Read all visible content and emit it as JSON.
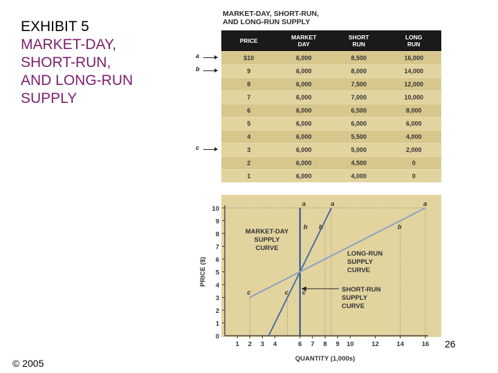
{
  "exhibit": {
    "title": "EXHIBIT 5",
    "subtitle_lines": [
      "MARKET-DAY,",
      "SHORT-RUN,",
      "AND LONG-RUN",
      "SUPPLY"
    ]
  },
  "copyright": "© 2005",
  "page_number": "26",
  "colors": {
    "accent": "#7a1e6e",
    "table_bg": "#d8c78c",
    "header_bg": "#1a1a1a",
    "line_blue": "#1f4f8a",
    "line_gray": "#8e9fbe"
  },
  "table": {
    "title_lines": [
      "MARKET-DAY, SHORT-RUN,",
      "AND LONG-RUN SUPPLY"
    ],
    "headers": [
      [
        "PRICE"
      ],
      [
        "MARKET",
        "DAY"
      ],
      [
        "SHORT",
        "RUN"
      ],
      [
        "LONG",
        "RUN"
      ]
    ],
    "rows": [
      [
        "$10",
        "6,000",
        "8,500",
        "16,000"
      ],
      [
        "9",
        "6,000",
        "8,000",
        "14,000"
      ],
      [
        "8",
        "6,000",
        "7,500",
        "12,000"
      ],
      [
        "7",
        "6,000",
        "7,000",
        "10,000"
      ],
      [
        "6",
        "6,000",
        "6,500",
        "8,000"
      ],
      [
        "5",
        "6,000",
        "6,000",
        "6,000"
      ],
      [
        "4",
        "6,000",
        "5,500",
        "4,000"
      ],
      [
        "3",
        "6,000",
        "5,000",
        "2,000"
      ],
      [
        "2",
        "6,000",
        "4,500",
        "0"
      ],
      [
        "1",
        "6,000",
        "4,000",
        "0"
      ]
    ],
    "row_markers": [
      {
        "label": "a",
        "row": 0
      },
      {
        "label": "b",
        "row": 1
      },
      {
        "label": "c",
        "row": 7
      }
    ]
  },
  "chart_data": {
    "type": "line",
    "xlabel": "QUANTITY (1,000s)",
    "ylabel": "PRICE ($)",
    "xlim": [
      0,
      16
    ],
    "ylim": [
      0,
      10
    ],
    "x_ticks": [
      1,
      2,
      3,
      4,
      6,
      7,
      8,
      9,
      10,
      12,
      14,
      16
    ],
    "y_ticks": [
      0,
      1,
      2,
      3,
      4,
      5,
      6,
      7,
      8,
      9,
      10
    ],
    "series": [
      {
        "name": "MARKET-DAY SUPPLY CURVE",
        "points": [
          [
            6,
            0
          ],
          [
            6,
            10
          ]
        ]
      },
      {
        "name": "SHORT-RUN SUPPLY CURVE",
        "points": [
          [
            3.5,
            0
          ],
          [
            8.5,
            10
          ]
        ]
      },
      {
        "name": "LONG-RUN SUPPLY CURVE",
        "points": [
          [
            2,
            3
          ],
          [
            16,
            10
          ]
        ]
      }
    ],
    "curve_labels": [
      {
        "lines": [
          "MARKET-DAY",
          "SUPPLY",
          "CURVE"
        ]
      },
      {
        "lines": [
          "LONG-RUN",
          "SUPPLY",
          "CURVE"
        ]
      },
      {
        "lines": [
          "SHORT-RUN",
          "SUPPLY",
          "CURVE"
        ]
      }
    ],
    "point_labels": [
      {
        "text": "a",
        "x": 6,
        "y": 10
      },
      {
        "text": "a",
        "x": 8.5,
        "y": 10
      },
      {
        "text": "a",
        "x": 16,
        "y": 10
      },
      {
        "text": "b",
        "x": 6,
        "y": 9
      },
      {
        "text": "b",
        "x": 8,
        "y": 9
      },
      {
        "text": "b",
        "x": 14,
        "y": 9
      },
      {
        "text": "c",
        "x": 2,
        "y": 3
      },
      {
        "text": "c",
        "x": 5,
        "y": 3
      },
      {
        "text": "c",
        "x": 6,
        "y": 3
      }
    ]
  }
}
